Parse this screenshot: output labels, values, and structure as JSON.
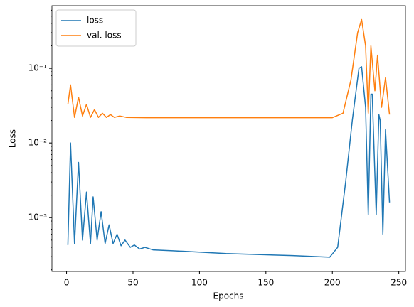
{
  "chart_data": {
    "type": "line",
    "xlabel": "Epochs",
    "ylabel": "Loss",
    "log_y": true,
    "legend": "upper left",
    "xlim": [
      -11,
      255
    ],
    "xticks": [
      0,
      50,
      100,
      150,
      200,
      250
    ],
    "ylim": [
      0.00019,
      0.69
    ],
    "yticks": [
      {
        "value": 0.001,
        "label": "10⁻³"
      },
      {
        "value": 0.01,
        "label": "10⁻²"
      },
      {
        "value": 0.1,
        "label": "10⁻¹"
      }
    ],
    "yminorticks": [
      0.0002,
      0.0003,
      0.0004,
      0.0005,
      0.0006,
      0.0007,
      0.0008,
      0.0009,
      0.002,
      0.003,
      0.004,
      0.005,
      0.006,
      0.007,
      0.008,
      0.009,
      0.02,
      0.03,
      0.04,
      0.05,
      0.06,
      0.07,
      0.08,
      0.09,
      0.2,
      0.3,
      0.4,
      0.5,
      0.6
    ],
    "series": [
      {
        "name": "loss",
        "color": "#1f77b4",
        "x": [
          1,
          3,
          6,
          9,
          12,
          15,
          18,
          20,
          23,
          26,
          29,
          32,
          35,
          38,
          41,
          44,
          48,
          51,
          55,
          59,
          65,
          80,
          120,
          170,
          198,
          204,
          210,
          215,
          220,
          222,
          225,
          227,
          229,
          230,
          233,
          235,
          236,
          238,
          240,
          243
        ],
        "values": [
          0.00043,
          0.01,
          0.00045,
          0.0055,
          0.0005,
          0.0022,
          0.00045,
          0.0019,
          0.0005,
          0.0012,
          0.00045,
          0.0008,
          0.00045,
          0.0006,
          0.00042,
          0.0005,
          0.0004,
          0.00043,
          0.00038,
          0.0004,
          0.00037,
          0.00036,
          0.00033,
          0.00031,
          0.000295,
          0.0004,
          0.003,
          0.02,
          0.1,
          0.105,
          0.03,
          0.0011,
          0.045,
          0.045,
          0.0011,
          0.024,
          0.02,
          0.0006,
          0.015,
          0.0016
        ]
      },
      {
        "name": "val. loss",
        "color": "#ff7f0e",
        "x": [
          1,
          3,
          6,
          9,
          12,
          15,
          18,
          21,
          24,
          27,
          30,
          33,
          36,
          40,
          45,
          60,
          150,
          200,
          208,
          214,
          219,
          222,
          225,
          227,
          229,
          232,
          234,
          237,
          240,
          243
        ],
        "values": [
          0.033,
          0.06,
          0.022,
          0.041,
          0.023,
          0.033,
          0.022,
          0.028,
          0.022,
          0.025,
          0.022,
          0.024,
          0.022,
          0.023,
          0.022,
          0.0218,
          0.0218,
          0.0218,
          0.025,
          0.07,
          0.3,
          0.45,
          0.2,
          0.025,
          0.2,
          0.05,
          0.15,
          0.03,
          0.075,
          0.024
        ]
      }
    ]
  }
}
